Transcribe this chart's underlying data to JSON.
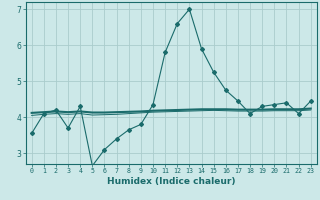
{
  "xlabel": "Humidex (Indice chaleur)",
  "bg_color": "#cce8e8",
  "grid_color": "#aacccc",
  "line_color": "#1a6b6b",
  "xlim": [
    -0.5,
    23.5
  ],
  "ylim": [
    2.7,
    7.2
  ],
  "yticks": [
    3,
    4,
    5,
    6,
    7
  ],
  "xticks": [
    0,
    1,
    2,
    3,
    4,
    5,
    6,
    7,
    8,
    9,
    10,
    11,
    12,
    13,
    14,
    15,
    16,
    17,
    18,
    19,
    20,
    21,
    22,
    23
  ],
  "series1_x": [
    0,
    1,
    2,
    3,
    4,
    5,
    6,
    7,
    8,
    9,
    10,
    11,
    12,
    13,
    14,
    15,
    16,
    17,
    18,
    19,
    20,
    21,
    22,
    23
  ],
  "series1_y": [
    3.55,
    4.1,
    4.2,
    3.7,
    4.3,
    2.65,
    3.1,
    3.4,
    3.65,
    3.8,
    4.35,
    5.8,
    6.6,
    7.0,
    5.9,
    5.25,
    4.75,
    4.45,
    4.1,
    4.3,
    4.35,
    4.4,
    4.1,
    4.45
  ],
  "series2_x": [
    0,
    1,
    2,
    3,
    4,
    5,
    6,
    7,
    8,
    9,
    10,
    11,
    12,
    13,
    14,
    15,
    16,
    17,
    18,
    19,
    20,
    21,
    22,
    23
  ],
  "series2_y": [
    4.12,
    4.14,
    4.16,
    4.14,
    4.16,
    4.13,
    4.13,
    4.14,
    4.15,
    4.16,
    4.18,
    4.19,
    4.2,
    4.21,
    4.22,
    4.22,
    4.22,
    4.21,
    4.21,
    4.21,
    4.22,
    4.22,
    4.22,
    4.24
  ],
  "series3_x": [
    0,
    1,
    2,
    3,
    4,
    5,
    6,
    7,
    8,
    9,
    10,
    11,
    12,
    13,
    14,
    15,
    16,
    17,
    18,
    19,
    20,
    21,
    22,
    23
  ],
  "series3_y": [
    4.05,
    4.08,
    4.1,
    4.08,
    4.1,
    4.06,
    4.07,
    4.08,
    4.1,
    4.12,
    4.14,
    4.15,
    4.16,
    4.17,
    4.18,
    4.19,
    4.18,
    4.17,
    4.17,
    4.17,
    4.18,
    4.18,
    4.18,
    4.2
  ]
}
